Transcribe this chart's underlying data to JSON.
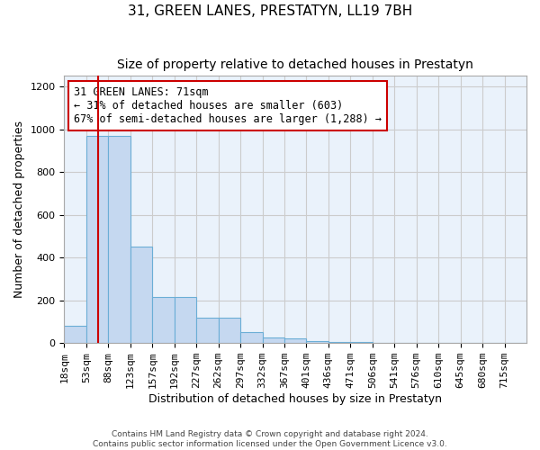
{
  "title": "31, GREEN LANES, PRESTATYN, LL19 7BH",
  "subtitle": "Size of property relative to detached houses in Prestatyn",
  "xlabel": "Distribution of detached houses by size in Prestatyn",
  "ylabel": "Number of detached properties",
  "footer1": "Contains HM Land Registry data © Crown copyright and database right 2024.",
  "footer2": "Contains public sector information licensed under the Open Government Licence v3.0.",
  "bin_labels": [
    "18sqm",
    "53sqm",
    "88sqm",
    "123sqm",
    "157sqm",
    "192sqm",
    "227sqm",
    "262sqm",
    "297sqm",
    "332sqm",
    "367sqm",
    "401sqm",
    "436sqm",
    "471sqm",
    "506sqm",
    "541sqm",
    "576sqm",
    "610sqm",
    "645sqm",
    "680sqm",
    "715sqm"
  ],
  "bar_heights": [
    80,
    970,
    970,
    450,
    215,
    215,
    120,
    120,
    50,
    25,
    20,
    10,
    5,
    5,
    0,
    0,
    0,
    0,
    0,
    0,
    0
  ],
  "bar_color": "#c5d8f0",
  "bar_edge_color": "#6baed6",
  "property_line_x": 1.55,
  "property_line_color": "#cc0000",
  "annotation_text": "31 GREEN LANES: 71sqm\n← 31% of detached houses are smaller (603)\n67% of semi-detached houses are larger (1,288) →",
  "annotation_box_color": "#cc0000",
  "ylim": [
    0,
    1250
  ],
  "yticks": [
    0,
    200,
    400,
    600,
    800,
    1000,
    1200
  ],
  "background_color": "#ffffff",
  "grid_color": "#cccccc",
  "title_fontsize": 11,
  "subtitle_fontsize": 10,
  "ylabel_fontsize": 9,
  "xlabel_fontsize": 9,
  "tick_fontsize": 8,
  "annotation_fontsize": 8.5,
  "footer_fontsize": 6.5
}
